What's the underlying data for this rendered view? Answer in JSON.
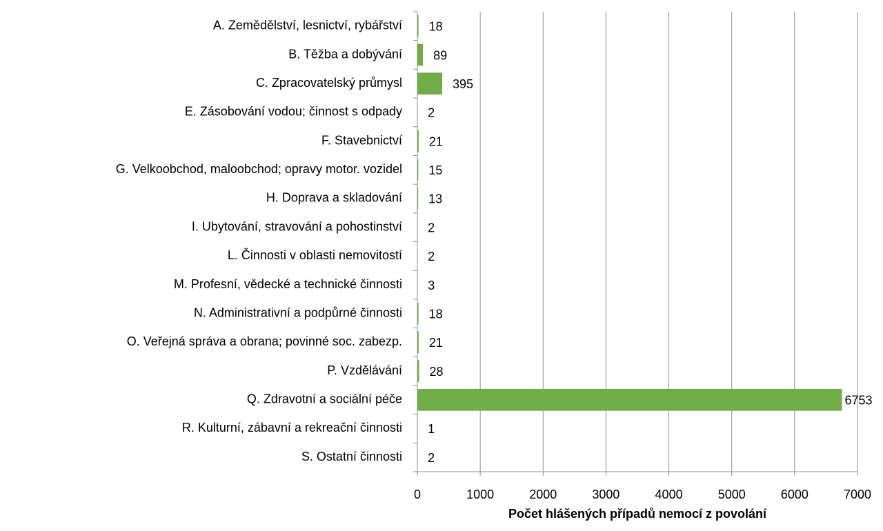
{
  "chart_data": {
    "type": "bar",
    "orientation": "horizontal",
    "x_label": "Počet hlášených případů nemocí z povolání",
    "categories": [
      "A. Zemědělství, lesnictví, rybářství",
      "B. Těžba a dobývání",
      "C. Zpracovatelský průmysl",
      "E. Zásobování vodou; činnost s odpady",
      "F. Stavebnictví",
      "G. Velkoobchod, maloobchod; opravy motor. vozidel",
      "H. Doprava a skladování",
      "I. Ubytování, stravování a pohostinství",
      "L. Činnosti v oblasti nemovitostí",
      "M. Profesní, vědecké a technické činnosti",
      "N. Administrativní a podpůrné činnosti",
      "O. Veřejná správa a obrana; povinné soc. zabezp.",
      "P. Vzdělávání",
      "Q. Zdravotní a sociální péče",
      "R. Kulturní, zábavní a rekreační činnosti",
      "S. Ostatní činnosti"
    ],
    "values": [
      18,
      89,
      395,
      2,
      21,
      15,
      13,
      2,
      2,
      3,
      18,
      21,
      28,
      6753,
      1,
      2
    ],
    "color": "#70ad47",
    "xlim": [
      0,
      7000
    ],
    "xticks": [
      0,
      1000,
      2000,
      3000,
      4000,
      5000,
      6000,
      7000
    ],
    "grid": true
  }
}
